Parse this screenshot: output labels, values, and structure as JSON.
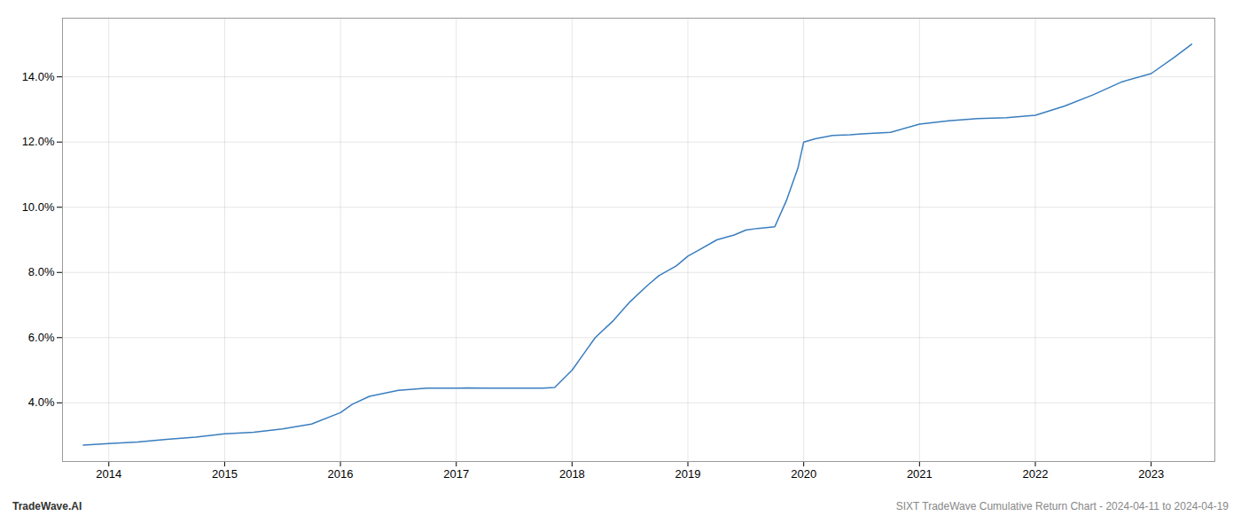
{
  "chart_data": {
    "type": "line",
    "x": [
      2013.78,
      2014.0,
      2014.25,
      2014.5,
      2014.75,
      2015.0,
      2015.25,
      2015.5,
      2015.75,
      2016.0,
      2016.1,
      2016.25,
      2016.5,
      2016.75,
      2017.0,
      2017.1,
      2017.25,
      2017.5,
      2017.75,
      2017.85,
      2018.0,
      2018.1,
      2018.2,
      2018.35,
      2018.5,
      2018.65,
      2018.75,
      2018.9,
      2019.0,
      2019.1,
      2019.25,
      2019.4,
      2019.5,
      2019.6,
      2019.75,
      2019.85,
      2019.95,
      2020.0,
      2020.1,
      2020.25,
      2020.4,
      2020.5,
      2020.75,
      2021.0,
      2021.25,
      2021.5,
      2021.75,
      2022.0,
      2022.25,
      2022.5,
      2022.75,
      2023.0,
      2023.2,
      2023.35
    ],
    "values": [
      2.7,
      2.75,
      2.8,
      2.88,
      2.95,
      3.05,
      3.1,
      3.2,
      3.35,
      3.7,
      3.95,
      4.2,
      4.38,
      4.45,
      4.45,
      4.46,
      4.45,
      4.45,
      4.45,
      4.47,
      5.0,
      5.5,
      6.0,
      6.5,
      7.1,
      7.6,
      7.9,
      8.2,
      8.5,
      8.7,
      9.0,
      9.15,
      9.3,
      9.35,
      9.4,
      10.2,
      11.2,
      12.0,
      12.1,
      12.2,
      12.22,
      12.25,
      12.3,
      12.55,
      12.65,
      12.72,
      12.75,
      12.82,
      13.1,
      13.45,
      13.85,
      14.1,
      14.6,
      15.0
    ],
    "color": "#3a7ebf",
    "xlim": [
      2013.6,
      2023.55
    ],
    "xticks": [
      2014,
      2015,
      2016,
      2017,
      2018,
      2019,
      2020,
      2021,
      2022,
      2023
    ],
    "ylim": [
      2.2,
      15.8
    ],
    "yticks": [
      {
        "value": 4.0,
        "label": "4.0%"
      },
      {
        "value": 6.0,
        "label": "6.0%"
      },
      {
        "value": 8.0,
        "label": "8.0%"
      },
      {
        "value": 10.0,
        "label": "10.0%"
      },
      {
        "value": 12.0,
        "label": "12.0%"
      },
      {
        "value": 14.0,
        "label": "14.0%"
      }
    ],
    "grid": true,
    "annotations": [
      "TradeWave.AI",
      "SIXT TradeWave Cumulative Return Chart - 2024-04-11 to 2024-04-19"
    ]
  }
}
